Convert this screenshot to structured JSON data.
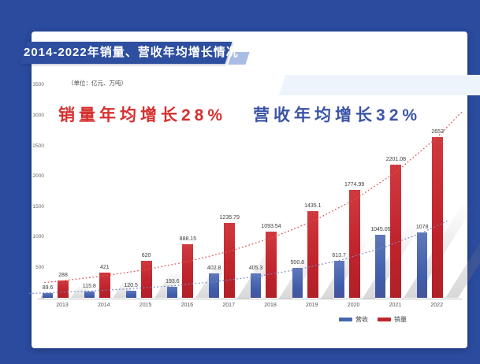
{
  "banner": {
    "title": "2014-2022年销量、营收年均增长情况"
  },
  "chart": {
    "unit_label": "（单位：亿元、万吨）",
    "annotations": [
      {
        "text": "销量年均增长28%",
        "color": "#d6302f"
      },
      {
        "text": "营收年均增长32%",
        "color": "#3b55a6"
      }
    ]
  },
  "legend": {
    "items": [
      {
        "label": "营收",
        "color": "#4866ae"
      },
      {
        "label": "销量",
        "color": "#c1242c"
      }
    ]
  },
  "chart_data": {
    "type": "bar",
    "title": "2014-2022年销量、营收年均增长情况",
    "categories": [
      "2013",
      "2014",
      "2015",
      "2016",
      "2017",
      "2018",
      "2019",
      "2020",
      "2021",
      "2022"
    ],
    "series": [
      {
        "name": "营收",
        "unit": "亿元",
        "color": "#4866ae",
        "values": [
          89.6,
          115.8,
          120.5,
          193.6,
          402.8,
          405.3,
          500.8,
          613.7,
          1045.05,
          1078
        ],
        "labels": [
          "89.6",
          "115.8",
          "120.5",
          "193.6",
          "402.8",
          "405.3",
          "500.8",
          "613.7",
          "1045.05",
          "1078"
        ]
      },
      {
        "name": "销量",
        "unit": "万吨",
        "color": "#c1242c",
        "values": [
          288,
          421,
          620,
          888.15,
          1235.79,
          1093.54,
          1435.1,
          1774.99,
          2201.08,
          2653
        ],
        "labels": [
          "288",
          "421",
          "620",
          "888.15",
          "1235.79",
          "1093.54",
          "1435.1",
          "1774.99",
          "2201.08",
          "2653"
        ]
      }
    ],
    "ylim": [
      0,
      3500
    ],
    "yticks": [
      "0",
      "500",
      "1000",
      "1500",
      "2000",
      "2500",
      "3000",
      "3500"
    ],
    "grid": false,
    "legend_position": "bottom-right",
    "trend_lines": [
      {
        "series": "销量",
        "style": "dotted",
        "color": "#df4f4f"
      },
      {
        "series": "营收",
        "style": "dotted",
        "color": "#7288c4"
      }
    ],
    "annotations": [
      "销量年均增长28%",
      "营收年均增长32%"
    ]
  }
}
